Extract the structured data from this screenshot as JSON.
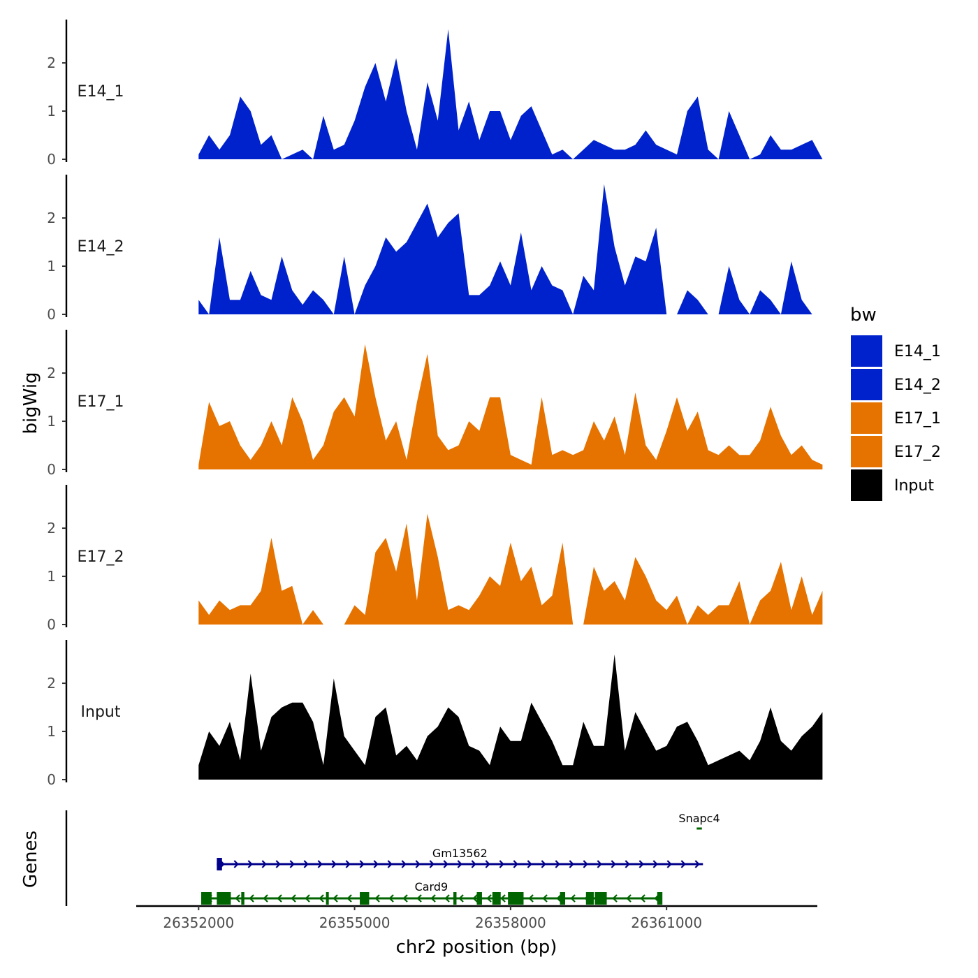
{
  "chart_data": {
    "type": "area",
    "ylabel": "bigWig",
    "gene_panel_label": "Genes",
    "xlabel": "chr2 position (bp)",
    "x_ticks": [
      26352000,
      26355000,
      26358000,
      26361000
    ],
    "x_tick_labels": [
      "26352000",
      "26355000",
      "26358000",
      "26361000"
    ],
    "xlim": [
      26350800,
      26363900
    ],
    "ylim": [
      0,
      2.9
    ],
    "y_ticks": [
      0,
      1,
      2
    ],
    "y_tick_labels": [
      "0",
      "1",
      "2"
    ],
    "x_start": 26352000,
    "x_step": 200,
    "legend": {
      "title": "bw",
      "entries": [
        {
          "label": "E14_1",
          "color": "#0022cc"
        },
        {
          "label": "E14_2",
          "color": "#0022cc"
        },
        {
          "label": "E17_1",
          "color": "#e67300"
        },
        {
          "label": "E17_2",
          "color": "#e67300"
        },
        {
          "label": "Input",
          "color": "#000000"
        }
      ]
    },
    "series": [
      {
        "name": "E14_1",
        "color": "#0022cc",
        "values": [
          0.1,
          0.5,
          0.2,
          0.5,
          1.3,
          1.0,
          0.3,
          0.5,
          0.0,
          0.1,
          0.2,
          0.0,
          0.9,
          0.2,
          0.3,
          0.8,
          1.5,
          2.0,
          1.2,
          2.1,
          1.0,
          0.2,
          1.6,
          0.8,
          2.7,
          0.6,
          1.2,
          0.4,
          1.0,
          1.0,
          0.4,
          0.9,
          1.1,
          0.6,
          0.1,
          0.2,
          0.0,
          0.2,
          0.4,
          0.3,
          0.2,
          0.2,
          0.3,
          0.6,
          0.3,
          0.2,
          0.1,
          1.0,
          1.3,
          0.2,
          0.0,
          1.0,
          0.5,
          0.0,
          0.1,
          0.5,
          0.2,
          0.2,
          0.3,
          0.4,
          0.0
        ]
      },
      {
        "name": "E14_2",
        "color": "#0022cc",
        "values": [
          0.3,
          0.0,
          1.6,
          0.3,
          0.3,
          0.9,
          0.4,
          0.3,
          1.2,
          0.5,
          0.2,
          0.5,
          0.3,
          0.0,
          1.2,
          0.0,
          0.6,
          1.0,
          1.6,
          1.3,
          1.5,
          1.9,
          2.3,
          1.6,
          1.9,
          2.1,
          0.4,
          0.4,
          0.6,
          1.1,
          0.6,
          1.7,
          0.5,
          1.0,
          0.6,
          0.5,
          0.0,
          0.8,
          0.5,
          2.7,
          1.4,
          0.6,
          1.2,
          1.1,
          1.8,
          0.0,
          0.0,
          0.5,
          0.3,
          0.0,
          0.0,
          1.0,
          0.3,
          0.0,
          0.5,
          0.3,
          0.0,
          1.1,
          0.3,
          0.0,
          0.0
        ]
      },
      {
        "name": "E17_1",
        "color": "#e67300",
        "values": [
          0.1,
          1.4,
          0.9,
          1.0,
          0.5,
          0.2,
          0.5,
          1.0,
          0.5,
          1.5,
          1.0,
          0.2,
          0.5,
          1.2,
          1.5,
          1.1,
          2.6,
          1.5,
          0.6,
          1.0,
          0.2,
          1.4,
          2.4,
          0.7,
          0.4,
          0.5,
          1.0,
          0.8,
          1.5,
          1.5,
          0.3,
          0.2,
          0.1,
          1.5,
          0.3,
          0.4,
          0.3,
          0.4,
          1.0,
          0.6,
          1.1,
          0.3,
          1.6,
          0.5,
          0.2,
          0.8,
          1.5,
          0.8,
          1.2,
          0.4,
          0.3,
          0.5,
          0.3,
          0.3,
          0.6,
          1.3,
          0.7,
          0.3,
          0.5,
          0.2,
          0.1
        ]
      },
      {
        "name": "E17_2",
        "color": "#e67300",
        "values": [
          0.5,
          0.2,
          0.5,
          0.3,
          0.4,
          0.4,
          0.7,
          1.8,
          0.7,
          0.8,
          0.0,
          0.3,
          0.0,
          0.0,
          0.0,
          0.4,
          0.2,
          1.5,
          1.8,
          1.1,
          2.1,
          0.5,
          2.3,
          1.4,
          0.3,
          0.4,
          0.3,
          0.6,
          1.0,
          0.8,
          1.7,
          0.9,
          1.2,
          0.4,
          0.6,
          1.7,
          0.0,
          0.0,
          1.2,
          0.7,
          0.9,
          0.5,
          1.4,
          1.0,
          0.5,
          0.3,
          0.6,
          0.0,
          0.4,
          0.2,
          0.4,
          0.4,
          0.9,
          0.0,
          0.5,
          0.7,
          1.3,
          0.3,
          1.0,
          0.2,
          0.7
        ]
      },
      {
        "name": "Input",
        "color": "#000000",
        "values": [
          0.3,
          1.0,
          0.7,
          1.2,
          0.4,
          2.2,
          0.6,
          1.3,
          1.5,
          1.6,
          1.6,
          1.2,
          0.3,
          2.1,
          0.9,
          0.6,
          0.3,
          1.3,
          1.5,
          0.5,
          0.7,
          0.4,
          0.9,
          1.1,
          1.5,
          1.3,
          0.7,
          0.6,
          0.3,
          1.1,
          0.8,
          0.8,
          1.6,
          1.2,
          0.8,
          0.3,
          0.3,
          1.2,
          0.7,
          0.7,
          2.6,
          0.6,
          1.4,
          1.0,
          0.6,
          0.7,
          1.1,
          1.2,
          0.8,
          0.3,
          0.4,
          0.5,
          0.6,
          0.4,
          0.8,
          1.5,
          0.8,
          0.6,
          0.9,
          1.1,
          1.4
        ]
      }
    ],
    "genes": [
      {
        "name": "Snapc4",
        "color": "#006400",
        "strand": "-",
        "start": 26361580,
        "end": 26361680,
        "exons": []
      },
      {
        "name": "Gm13562",
        "color": "#00008b",
        "strand": "+",
        "start": 26352350,
        "end": 26361700,
        "exons": [
          [
            26352350,
            26352450
          ]
        ]
      },
      {
        "name": "Card9",
        "color": "#006400",
        "strand": "-",
        "start": 26352050,
        "end": 26360900,
        "exons": [
          [
            26352050,
            26352250
          ],
          [
            26352350,
            26352620
          ],
          [
            26352820,
            26352880
          ],
          [
            26354450,
            26354490
          ],
          [
            26355100,
            26355280
          ],
          [
            26356900,
            26356960
          ],
          [
            26357350,
            26357450
          ],
          [
            26357650,
            26357810
          ],
          [
            26357950,
            26358250
          ],
          [
            26358950,
            26359050
          ],
          [
            26359450,
            26359600
          ],
          [
            26359620,
            26359850
          ],
          [
            26360820,
            26360920
          ]
        ]
      }
    ]
  }
}
